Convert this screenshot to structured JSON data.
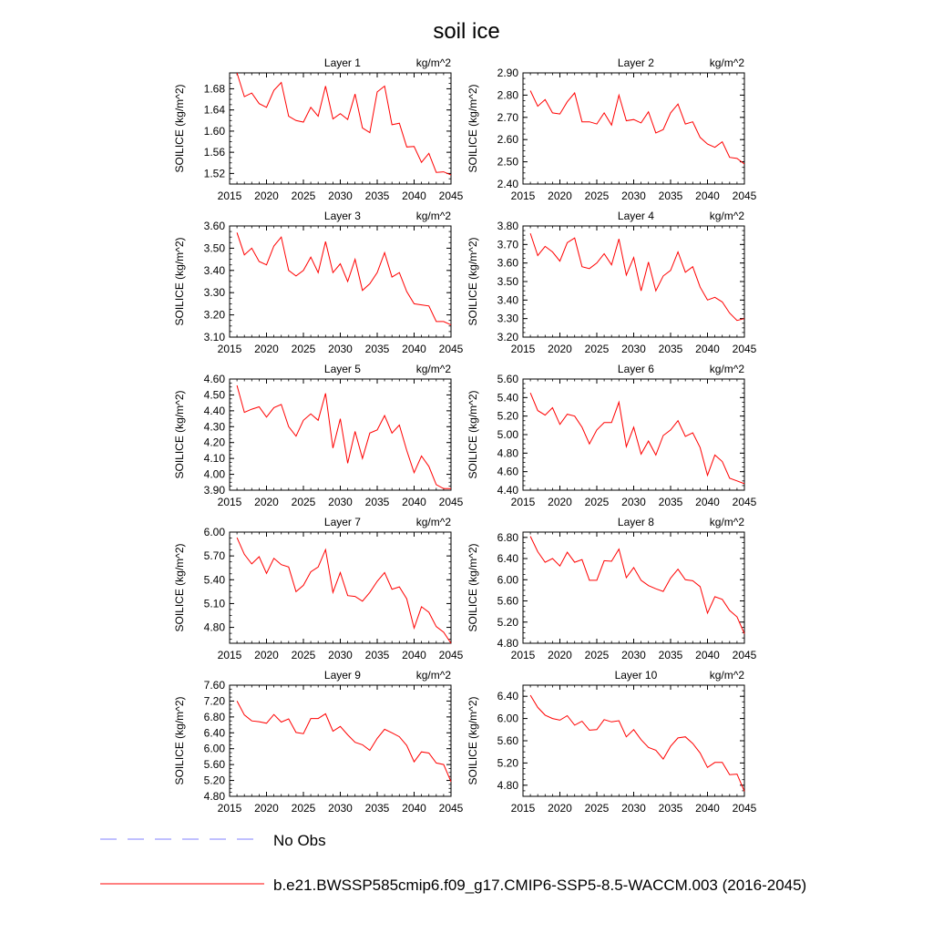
{
  "figure": {
    "title": "soil ice",
    "legend": [
      {
        "label": "No Obs",
        "color": "#8080ff",
        "style": "dashed"
      },
      {
        "label": "b.e21.BWSSP585cmip6.f09_g17.CMIP6-SSP5-8.5-WACCM.003 (2016-2045)",
        "color": "#ff0000",
        "style": "solid"
      }
    ]
  },
  "chart_data": [
    {
      "type": "line",
      "title": "Layer 1",
      "units": "kg/m^2",
      "ylabel": "SOILICE  (kg/m^2)",
      "xlim": [
        2015,
        2045
      ],
      "xticks": [
        2015,
        2020,
        2025,
        2030,
        2035,
        2040,
        2045
      ],
      "ylim": [
        1.5,
        1.71
      ],
      "yticks": [
        "1.52",
        "1.56",
        "1.60",
        "1.64",
        "1.68"
      ],
      "x": [
        2016,
        2017,
        2018,
        2019,
        2020,
        2021,
        2022,
        2023,
        2024,
        2025,
        2026,
        2027,
        2028,
        2029,
        2030,
        2031,
        2032,
        2033,
        2034,
        2035,
        2036,
        2037,
        2038,
        2039,
        2040,
        2041,
        2042,
        2043,
        2044,
        2045
      ],
      "series": [
        {
          "name": "b.e21.BWSSP585cmip6.f09_g17.CMIP6-SSP5-8.5-WACCM.003 (2016-2045)",
          "color": "#ff0000",
          "values": [
            1.71,
            1.665,
            1.672,
            1.652,
            1.645,
            1.677,
            1.692,
            1.628,
            1.62,
            1.617,
            1.645,
            1.628,
            1.685,
            1.623,
            1.633,
            1.622,
            1.67,
            1.606,
            1.597,
            1.674,
            1.685,
            1.612,
            1.615,
            1.57,
            1.571,
            1.541,
            1.558,
            1.522,
            1.523,
            1.517
          ]
        }
      ]
    },
    {
      "type": "line",
      "title": "Layer 2",
      "units": "kg/m^2",
      "ylabel": "SOILICE  (kg/m^2)",
      "xlim": [
        2015,
        2045
      ],
      "xticks": [
        2015,
        2020,
        2025,
        2030,
        2035,
        2040,
        2045
      ],
      "ylim": [
        2.4,
        2.9
      ],
      "yticks": [
        "2.40",
        "2.50",
        "2.60",
        "2.70",
        "2.80",
        "2.90"
      ],
      "x": [
        2016,
        2017,
        2018,
        2019,
        2020,
        2021,
        2022,
        2023,
        2024,
        2025,
        2026,
        2027,
        2028,
        2029,
        2030,
        2031,
        2032,
        2033,
        2034,
        2035,
        2036,
        2037,
        2038,
        2039,
        2040,
        2041,
        2042,
        2043,
        2044,
        2045
      ],
      "series": [
        {
          "name": "b.e21.BWSSP585cmip6.f09_g17.CMIP6-SSP5-8.5-WACCM.003 (2016-2045)",
          "color": "#ff0000",
          "values": [
            2.82,
            2.75,
            2.78,
            2.72,
            2.715,
            2.77,
            2.81,
            2.68,
            2.68,
            2.67,
            2.72,
            2.665,
            2.8,
            2.685,
            2.69,
            2.675,
            2.725,
            2.63,
            2.645,
            2.72,
            2.76,
            2.67,
            2.68,
            2.61,
            2.58,
            2.565,
            2.59,
            2.52,
            2.515,
            2.49
          ]
        }
      ]
    },
    {
      "type": "line",
      "title": "Layer 3",
      "units": "kg/m^2",
      "ylabel": "SOILICE  (kg/m^2)",
      "xlim": [
        2015,
        2045
      ],
      "xticks": [
        2015,
        2020,
        2025,
        2030,
        2035,
        2040,
        2045
      ],
      "ylim": [
        3.1,
        3.6
      ],
      "yticks": [
        "3.10",
        "3.20",
        "3.30",
        "3.40",
        "3.50",
        "3.60"
      ],
      "x": [
        2016,
        2017,
        2018,
        2019,
        2020,
        2021,
        2022,
        2023,
        2024,
        2025,
        2026,
        2027,
        2028,
        2029,
        2030,
        2031,
        2032,
        2033,
        2034,
        2035,
        2036,
        2037,
        2038,
        2039,
        2040,
        2041,
        2042,
        2043,
        2044,
        2045
      ],
      "series": [
        {
          "name": "b.e21.BWSSP585cmip6.f09_g17.CMIP6-SSP5-8.5-WACCM.003 (2016-2045)",
          "color": "#ff0000",
          "values": [
            3.57,
            3.47,
            3.5,
            3.44,
            3.425,
            3.51,
            3.55,
            3.4,
            3.375,
            3.4,
            3.46,
            3.39,
            3.53,
            3.39,
            3.43,
            3.35,
            3.45,
            3.31,
            3.34,
            3.39,
            3.48,
            3.37,
            3.39,
            3.305,
            3.25,
            3.245,
            3.24,
            3.17,
            3.17,
            3.155
          ]
        }
      ]
    },
    {
      "type": "line",
      "title": "Layer 4",
      "units": "kg/m^2",
      "ylabel": "SOILICE  (kg/m^2)",
      "xlim": [
        2015,
        2045
      ],
      "xticks": [
        2015,
        2020,
        2025,
        2030,
        2035,
        2040,
        2045
      ],
      "ylim": [
        3.2,
        3.8
      ],
      "yticks": [
        "3.20",
        "3.30",
        "3.40",
        "3.50",
        "3.60",
        "3.70",
        "3.80"
      ],
      "x": [
        2016,
        2017,
        2018,
        2019,
        2020,
        2021,
        2022,
        2023,
        2024,
        2025,
        2026,
        2027,
        2028,
        2029,
        2030,
        2031,
        2032,
        2033,
        2034,
        2035,
        2036,
        2037,
        2038,
        2039,
        2040,
        2041,
        2042,
        2043,
        2044,
        2045
      ],
      "series": [
        {
          "name": "b.e21.BWSSP585cmip6.f09_g17.CMIP6-SSP5-8.5-WACCM.003 (2016-2045)",
          "color": "#ff0000",
          "values": [
            3.76,
            3.64,
            3.69,
            3.66,
            3.61,
            3.71,
            3.735,
            3.58,
            3.57,
            3.6,
            3.65,
            3.59,
            3.73,
            3.535,
            3.63,
            3.45,
            3.605,
            3.45,
            3.53,
            3.56,
            3.66,
            3.55,
            3.58,
            3.47,
            3.4,
            3.415,
            3.39,
            3.33,
            3.29,
            3.3
          ]
        }
      ]
    },
    {
      "type": "line",
      "title": "Layer 5",
      "units": "kg/m^2",
      "ylabel": "SOILICE  (kg/m^2)",
      "xlim": [
        2015,
        2045
      ],
      "xticks": [
        2015,
        2020,
        2025,
        2030,
        2035,
        2040,
        2045
      ],
      "ylim": [
        3.9,
        4.6
      ],
      "yticks": [
        "3.90",
        "4.00",
        "4.10",
        "4.20",
        "4.30",
        "4.40",
        "4.50",
        "4.60"
      ],
      "x": [
        2016,
        2017,
        2018,
        2019,
        2020,
        2021,
        2022,
        2023,
        2024,
        2025,
        2026,
        2027,
        2028,
        2029,
        2030,
        2031,
        2032,
        2033,
        2034,
        2035,
        2036,
        2037,
        2038,
        2039,
        2040,
        2041,
        2042,
        2043,
        2044,
        2045
      ],
      "series": [
        {
          "name": "b.e21.BWSSP585cmip6.f09_g17.CMIP6-SSP5-8.5-WACCM.003 (2016-2045)",
          "color": "#ff0000",
          "values": [
            4.56,
            4.39,
            4.41,
            4.425,
            4.36,
            4.42,
            4.44,
            4.3,
            4.24,
            4.34,
            4.38,
            4.34,
            4.51,
            4.165,
            4.35,
            4.07,
            4.27,
            4.1,
            4.26,
            4.28,
            4.37,
            4.26,
            4.31,
            4.15,
            4.01,
            4.115,
            4.05,
            3.935,
            3.91,
            3.91
          ]
        }
      ]
    },
    {
      "type": "line",
      "title": "Layer 6",
      "units": "kg/m^2",
      "ylabel": "SOILICE  (kg/m^2)",
      "xlim": [
        2015,
        2045
      ],
      "xticks": [
        2015,
        2020,
        2025,
        2030,
        2035,
        2040,
        2045
      ],
      "ylim": [
        4.4,
        5.6
      ],
      "yticks": [
        "4.40",
        "4.60",
        "4.80",
        "5.00",
        "5.20",
        "5.40",
        "5.60"
      ],
      "x": [
        2016,
        2017,
        2018,
        2019,
        2020,
        2021,
        2022,
        2023,
        2024,
        2025,
        2026,
        2027,
        2028,
        2029,
        2030,
        2031,
        2032,
        2033,
        2034,
        2035,
        2036,
        2037,
        2038,
        2039,
        2040,
        2041,
        2042,
        2043,
        2044,
        2045
      ],
      "series": [
        {
          "name": "b.e21.BWSSP585cmip6.f09_g17.CMIP6-SSP5-8.5-WACCM.003 (2016-2045)",
          "color": "#ff0000",
          "values": [
            5.45,
            5.26,
            5.21,
            5.29,
            5.11,
            5.22,
            5.2,
            5.08,
            4.9,
            5.05,
            5.13,
            5.13,
            5.35,
            4.87,
            5.08,
            4.79,
            4.93,
            4.78,
            4.99,
            5.05,
            5.15,
            4.98,
            5.02,
            4.86,
            4.56,
            4.78,
            4.71,
            4.53,
            4.5,
            4.47
          ]
        }
      ]
    },
    {
      "type": "line",
      "title": "Layer 7",
      "units": "kg/m^2",
      "ylabel": "SOILICE  (kg/m^2)",
      "xlim": [
        2015,
        2045
      ],
      "xticks": [
        2015,
        2020,
        2025,
        2030,
        2035,
        2040,
        2045
      ],
      "ylim": [
        4.6,
        6.0
      ],
      "yticks": [
        "4.80",
        "5.10",
        "5.40",
        "5.70",
        "6.00"
      ],
      "x": [
        2016,
        2017,
        2018,
        2019,
        2020,
        2021,
        2022,
        2023,
        2024,
        2025,
        2026,
        2027,
        2028,
        2029,
        2030,
        2031,
        2032,
        2033,
        2034,
        2035,
        2036,
        2037,
        2038,
        2039,
        2040,
        2041,
        2042,
        2043,
        2044,
        2045
      ],
      "series": [
        {
          "name": "b.e21.BWSSP585cmip6.f09_g17.CMIP6-SSP5-8.5-WACCM.003 (2016-2045)",
          "color": "#ff0000",
          "values": [
            5.93,
            5.72,
            5.6,
            5.69,
            5.48,
            5.67,
            5.59,
            5.56,
            5.25,
            5.33,
            5.5,
            5.56,
            5.78,
            5.24,
            5.49,
            5.2,
            5.19,
            5.13,
            5.24,
            5.38,
            5.49,
            5.28,
            5.31,
            5.16,
            4.79,
            5.06,
            4.99,
            4.81,
            4.74,
            4.6
          ]
        }
      ]
    },
    {
      "type": "line",
      "title": "Layer 8",
      "units": "kg/m^2",
      "ylabel": "SOILICE  (kg/m^2)",
      "xlim": [
        2015,
        2045
      ],
      "xticks": [
        2015,
        2020,
        2025,
        2030,
        2035,
        2040,
        2045
      ],
      "ylim": [
        4.8,
        6.9
      ],
      "yticks": [
        "4.80",
        "5.20",
        "5.60",
        "6.00",
        "6.40",
        "6.80"
      ],
      "x": [
        2016,
        2017,
        2018,
        2019,
        2020,
        2021,
        2022,
        2023,
        2024,
        2025,
        2026,
        2027,
        2028,
        2029,
        2030,
        2031,
        2032,
        2033,
        2034,
        2035,
        2036,
        2037,
        2038,
        2039,
        2040,
        2041,
        2042,
        2043,
        2044,
        2045
      ],
      "series": [
        {
          "name": "b.e21.BWSSP585cmip6.f09_g17.CMIP6-SSP5-8.5-WACCM.003 (2016-2045)",
          "color": "#ff0000",
          "values": [
            6.82,
            6.53,
            6.33,
            6.4,
            6.26,
            6.52,
            6.33,
            6.38,
            5.99,
            5.99,
            6.36,
            6.35,
            6.58,
            6.04,
            6.23,
            5.99,
            5.89,
            5.83,
            5.78,
            6.03,
            6.2,
            6.0,
            5.98,
            5.87,
            5.37,
            5.68,
            5.63,
            5.42,
            5.3,
            4.98
          ]
        }
      ]
    },
    {
      "type": "line",
      "title": "Layer 9",
      "units": "kg/m^2",
      "ylabel": "SOILICE  (kg/m^2)",
      "xlim": [
        2015,
        2045
      ],
      "xticks": [
        2015,
        2020,
        2025,
        2030,
        2035,
        2040,
        2045
      ],
      "ylim": [
        4.8,
        7.6
      ],
      "yticks": [
        "4.80",
        "5.20",
        "5.60",
        "6.00",
        "6.40",
        "6.80",
        "7.20",
        "7.60"
      ],
      "x": [
        2016,
        2017,
        2018,
        2019,
        2020,
        2021,
        2022,
        2023,
        2024,
        2025,
        2026,
        2027,
        2028,
        2029,
        2030,
        2031,
        2032,
        2033,
        2034,
        2035,
        2036,
        2037,
        2038,
        2039,
        2040,
        2041,
        2042,
        2043,
        2044,
        2045
      ],
      "series": [
        {
          "name": "b.e21.BWSSP585cmip6.f09_g17.CMIP6-SSP5-8.5-WACCM.003 (2016-2045)",
          "color": "#ff0000",
          "values": [
            7.2,
            6.85,
            6.7,
            6.68,
            6.64,
            6.86,
            6.67,
            6.75,
            6.41,
            6.38,
            6.76,
            6.76,
            6.88,
            6.44,
            6.56,
            6.35,
            6.16,
            6.1,
            5.96,
            6.26,
            6.49,
            6.4,
            6.3,
            6.08,
            5.67,
            5.92,
            5.89,
            5.64,
            5.6,
            5.17
          ]
        }
      ]
    },
    {
      "type": "line",
      "title": "Layer 10",
      "units": "kg/m^2",
      "ylabel": "SOILICE  (kg/m^2)",
      "xlim": [
        2015,
        2045
      ],
      "xticks": [
        2015,
        2020,
        2025,
        2030,
        2035,
        2040,
        2045
      ],
      "ylim": [
        4.6,
        6.6
      ],
      "yticks": [
        "4.80",
        "5.20",
        "5.60",
        "6.00",
        "6.40"
      ],
      "x": [
        2016,
        2017,
        2018,
        2019,
        2020,
        2021,
        2022,
        2023,
        2024,
        2025,
        2026,
        2027,
        2028,
        2029,
        2030,
        2031,
        2032,
        2033,
        2034,
        2035,
        2036,
        2037,
        2038,
        2039,
        2040,
        2041,
        2042,
        2043,
        2044,
        2045
      ],
      "series": [
        {
          "name": "b.e21.BWSSP585cmip6.f09_g17.CMIP6-SSP5-8.5-WACCM.003 (2016-2045)",
          "color": "#ff0000",
          "values": [
            6.42,
            6.2,
            6.06,
            6.0,
            5.97,
            6.05,
            5.88,
            5.95,
            5.79,
            5.8,
            5.98,
            5.94,
            5.96,
            5.67,
            5.8,
            5.62,
            5.48,
            5.43,
            5.27,
            5.5,
            5.65,
            5.67,
            5.55,
            5.38,
            5.12,
            5.21,
            5.21,
            4.99,
            5.0,
            4.69
          ]
        }
      ]
    }
  ]
}
